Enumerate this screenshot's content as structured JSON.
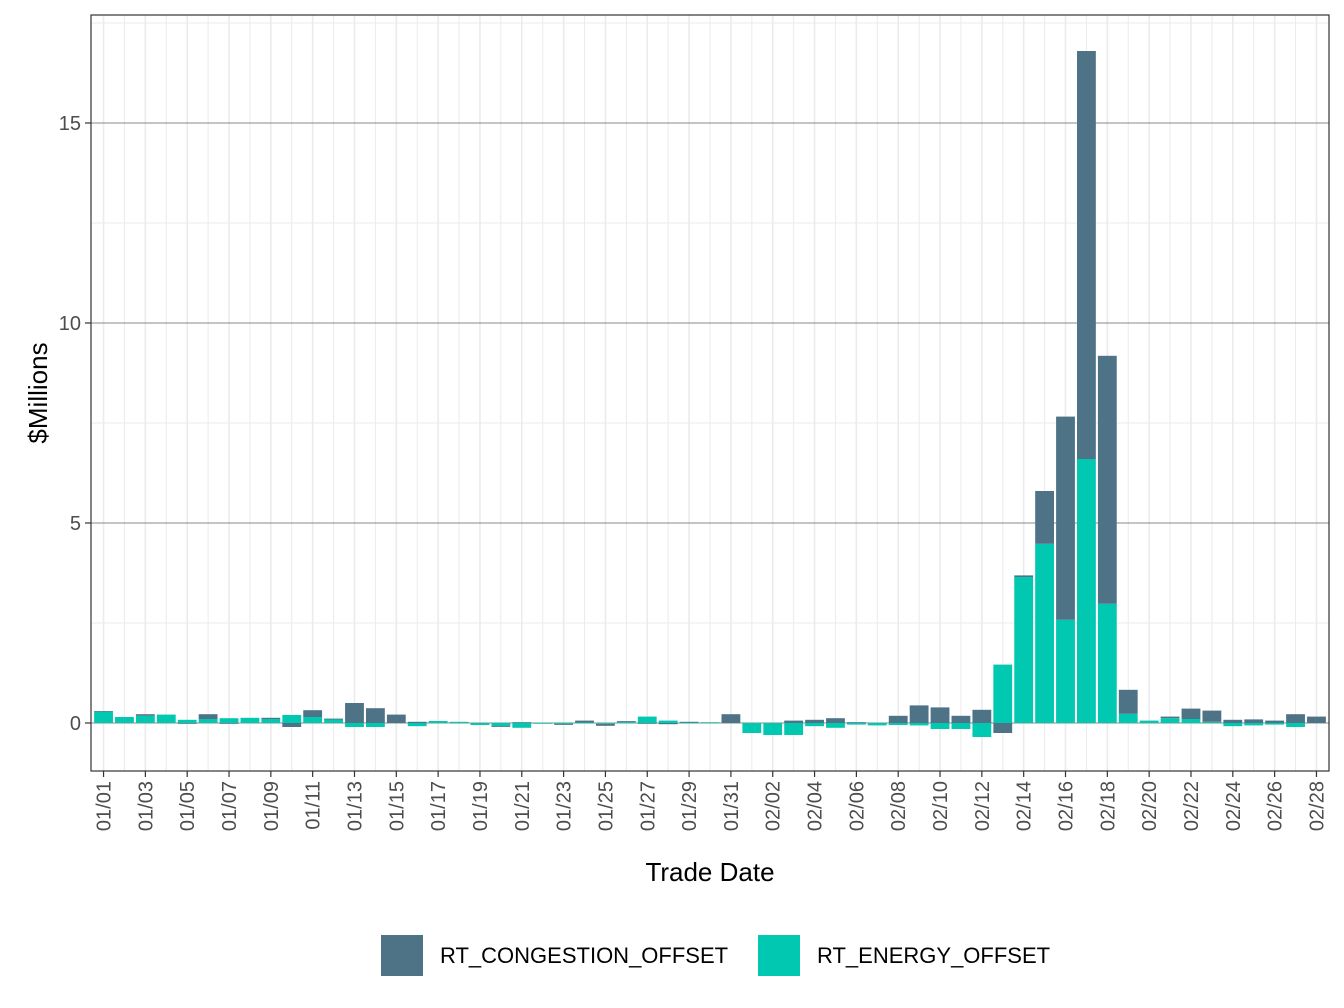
{
  "chart_data": {
    "type": "bar",
    "stacked": "diverging",
    "xlabel": "Trade Date",
    "ylabel": "$Millions",
    "ylim": [
      -1.2,
      17.7
    ],
    "y_ticks": [
      0,
      5,
      10,
      15
    ],
    "y_tick_labels": [
      "0",
      "5",
      "10",
      "15"
    ],
    "grid": true,
    "legend_position": "bottom",
    "categories": [
      "01/01",
      "01/02",
      "01/03",
      "01/04",
      "01/05",
      "01/06",
      "01/07",
      "01/08",
      "01/09",
      "01/10",
      "01/11",
      "01/12",
      "01/13",
      "01/14",
      "01/15",
      "01/16",
      "01/17",
      "01/18",
      "01/19",
      "01/20",
      "01/21",
      "01/22",
      "01/23",
      "01/24",
      "01/25",
      "01/26",
      "01/27",
      "01/28",
      "01/29",
      "01/30",
      "01/31",
      "02/01",
      "02/02",
      "02/03",
      "02/04",
      "02/05",
      "02/06",
      "02/07",
      "02/08",
      "02/09",
      "02/10",
      "02/11",
      "02/12",
      "02/13",
      "02/14",
      "02/15",
      "02/16",
      "02/17",
      "02/18",
      "02/19",
      "02/20",
      "02/21",
      "02/22",
      "02/23",
      "02/24",
      "02/25",
      "02/26",
      "02/27",
      "02/28"
    ],
    "x_tick_labels": [
      "01/01",
      "01/03",
      "01/05",
      "01/07",
      "01/09",
      "01/11",
      "01/13",
      "01/15",
      "01/17",
      "01/19",
      "01/21",
      "01/23",
      "01/25",
      "01/27",
      "01/29",
      "01/31",
      "02/02",
      "02/04",
      "02/06",
      "02/08",
      "02/10",
      "02/12",
      "02/14",
      "02/16",
      "02/18",
      "02/20",
      "02/22",
      "02/24",
      "02/26",
      "02/28"
    ],
    "series": [
      {
        "name": "RT_CONGESTION_OFFSET",
        "color": "#4e7387",
        "values": [
          0.02,
          0.0,
          0.04,
          0.0,
          -0.02,
          0.12,
          -0.02,
          0.0,
          0.03,
          -0.1,
          0.17,
          0.01,
          0.5,
          0.37,
          0.21,
          0.03,
          0.0,
          0.0,
          0.0,
          -0.02,
          0.02,
          0.0,
          -0.02,
          0.05,
          -0.05,
          0.02,
          -0.02,
          -0.03,
          0.02,
          0.0,
          0.22,
          0.0,
          0.0,
          0.06,
          0.08,
          0.12,
          0.02,
          0.0,
          0.18,
          0.44,
          0.39,
          0.18,
          0.33,
          -0.25,
          0.04,
          1.32,
          5.08,
          10.2,
          6.2,
          0.6,
          0.0,
          0.04,
          0.26,
          0.28,
          0.08,
          0.09,
          0.06,
          0.22,
          0.16
        ]
      },
      {
        "name": "RT_ENERGY_OFFSET",
        "color": "#00c8b1",
        "values": [
          0.28,
          0.15,
          0.18,
          0.21,
          0.08,
          0.1,
          0.12,
          0.13,
          0.1,
          0.2,
          0.15,
          0.1,
          -0.1,
          -0.1,
          0.0,
          -0.08,
          0.05,
          0.03,
          -0.05,
          -0.08,
          -0.12,
          -0.02,
          -0.03,
          0.01,
          -0.02,
          0.03,
          0.16,
          0.06,
          0.01,
          0.02,
          0.0,
          -0.25,
          -0.3,
          -0.3,
          -0.08,
          -0.12,
          -0.04,
          -0.06,
          -0.05,
          -0.06,
          -0.15,
          -0.15,
          -0.35,
          1.46,
          3.65,
          4.48,
          2.58,
          6.6,
          2.98,
          0.23,
          0.06,
          0.12,
          0.1,
          0.03,
          -0.08,
          -0.06,
          -0.04,
          -0.1,
          0.0
        ]
      }
    ]
  }
}
